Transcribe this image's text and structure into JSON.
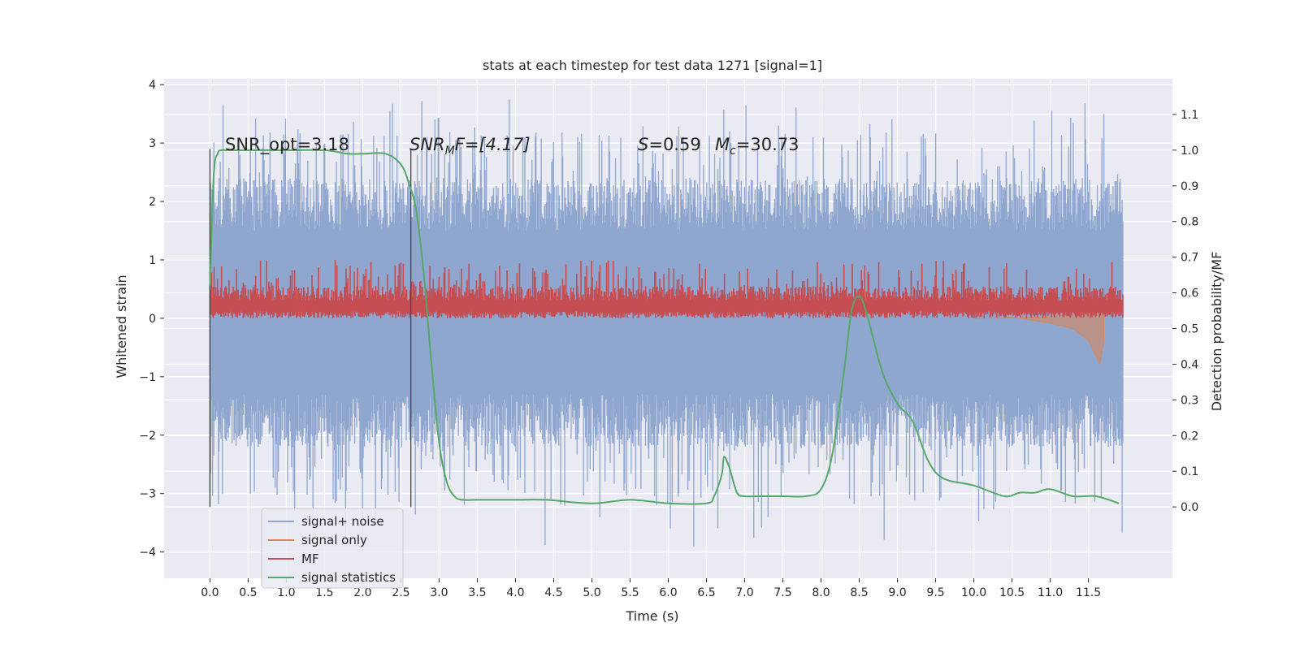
{
  "chart_data": {
    "type": "line",
    "title": "stats at each timestep for test data 1271 [signal=1]",
    "xlabel": "Time (s)",
    "ylabel_left": "Whitened strain",
    "ylabel_right": "Detection probability/MF",
    "xlim": [
      -0.6,
      12.6
    ],
    "ylim_left": [
      -4.45,
      4.1
    ],
    "ylim_right": [
      -0.2,
      1.2
    ],
    "x_ticks": [
      0.0,
      0.5,
      1.0,
      1.5,
      2.0,
      2.5,
      3.0,
      3.5,
      4.0,
      4.5,
      5.0,
      5.5,
      6.0,
      6.5,
      7.0,
      7.5,
      8.0,
      8.5,
      9.0,
      9.5,
      10.0,
      10.5,
      11.0,
      11.5
    ],
    "x_tick_labels": [
      "0.0",
      "0.5",
      "1.0",
      "1.5",
      "2.0",
      "2.5",
      "3.0",
      "3.5",
      "4.0",
      "4.5",
      "5.0",
      "5.5",
      "6.0",
      "6.5",
      "7.0",
      "7.5",
      "8.0",
      "8.5",
      "9.0",
      "9.5",
      "10.0",
      "10.5",
      "11.0",
      "11.5"
    ],
    "y_left_ticks": [
      -4,
      -3,
      -2,
      -1,
      0,
      1,
      2,
      3,
      4
    ],
    "y_left_tick_labels": [
      "−4",
      "−3",
      "−2",
      "−1",
      "0",
      "1",
      "2",
      "3",
      "4"
    ],
    "y_right_ticks": [
      0.0,
      0.1,
      0.2,
      0.3,
      0.4,
      0.5,
      0.6,
      0.7,
      0.8,
      0.9,
      1.0,
      1.1
    ],
    "y_right_tick_labels": [
      "0.0",
      "0.1",
      "0.2",
      "0.3",
      "0.4",
      "0.5",
      "0.6",
      "0.7",
      "0.8",
      "0.9",
      "1.0",
      "1.1"
    ],
    "grid": true,
    "legend_position": "bottom-left",
    "colors": {
      "background": "#eaeaf2",
      "grid": "#ffffff",
      "noise": "#8fa6cf",
      "signal_only": "#dd8452",
      "mf": "#c44e52",
      "stats": "#55a868",
      "text": "#262626"
    },
    "annotations": {
      "snr_opt": "SNR_opt=3.18",
      "snr_mf_sym": "SNR",
      "snr_mf_sub": "M",
      "snr_mf_tail": "F=[4.17]",
      "spin_sym": "S",
      "spin_val": "=0.59",
      "mc_sym": "M",
      "mc_sub": "c",
      "mc_val": "=30.73"
    },
    "vlines": [
      0.0,
      2.63
    ],
    "series": [
      {
        "name": "signal+ noise",
        "kind": "noise-band",
        "x_range": [
          0.0,
          11.95
        ],
        "typical_band": [
          -1.3,
          1.5
        ],
        "peak_max": 3.75,
        "peak_min": -4.05
      },
      {
        "name": "signal only",
        "kind": "chirp",
        "x": [
          10.0,
          10.5,
          11.0,
          11.3,
          11.5,
          11.6,
          11.65,
          11.7
        ],
        "y": [
          0.0,
          0.02,
          -0.08,
          -0.18,
          -0.38,
          -0.65,
          -0.78,
          -0.4
        ]
      },
      {
        "name": "MF",
        "kind": "mf-band",
        "x_range": [
          0.0,
          11.95
        ],
        "band": [
          0.0,
          0.55
        ],
        "peak_max": 1.0
      },
      {
        "name": "signal statistics",
        "kind": "line",
        "x": [
          0.0,
          0.05,
          0.1,
          0.15,
          0.2,
          0.3,
          0.5,
          1.0,
          1.5,
          1.8,
          2.0,
          2.3,
          2.5,
          2.6,
          2.7,
          2.8,
          2.9,
          3.0,
          3.1,
          3.2,
          3.3,
          3.5,
          4.0,
          4.4,
          5.0,
          5.5,
          6.0,
          6.5,
          6.6,
          6.7,
          6.73,
          6.8,
          6.9,
          7.0,
          7.2,
          7.5,
          7.8,
          8.0,
          8.15,
          8.3,
          8.4,
          8.5,
          8.6,
          8.8,
          9.0,
          9.2,
          9.4,
          9.6,
          10.0,
          10.4,
          10.6,
          10.8,
          11.0,
          11.3,
          11.6,
          11.9
        ],
        "y": [
          0.62,
          0.93,
          0.99,
          1.0,
          1.0,
          1.0,
          1.0,
          1.0,
          1.0,
          0.99,
          0.99,
          0.99,
          0.96,
          0.91,
          0.83,
          0.65,
          0.4,
          0.18,
          0.07,
          0.03,
          0.02,
          0.02,
          0.02,
          0.02,
          0.01,
          0.02,
          0.01,
          0.01,
          0.03,
          0.09,
          0.14,
          0.11,
          0.04,
          0.03,
          0.03,
          0.03,
          0.03,
          0.05,
          0.15,
          0.38,
          0.55,
          0.59,
          0.54,
          0.38,
          0.29,
          0.24,
          0.13,
          0.08,
          0.06,
          0.03,
          0.04,
          0.04,
          0.05,
          0.03,
          0.03,
          0.01
        ]
      }
    ]
  }
}
